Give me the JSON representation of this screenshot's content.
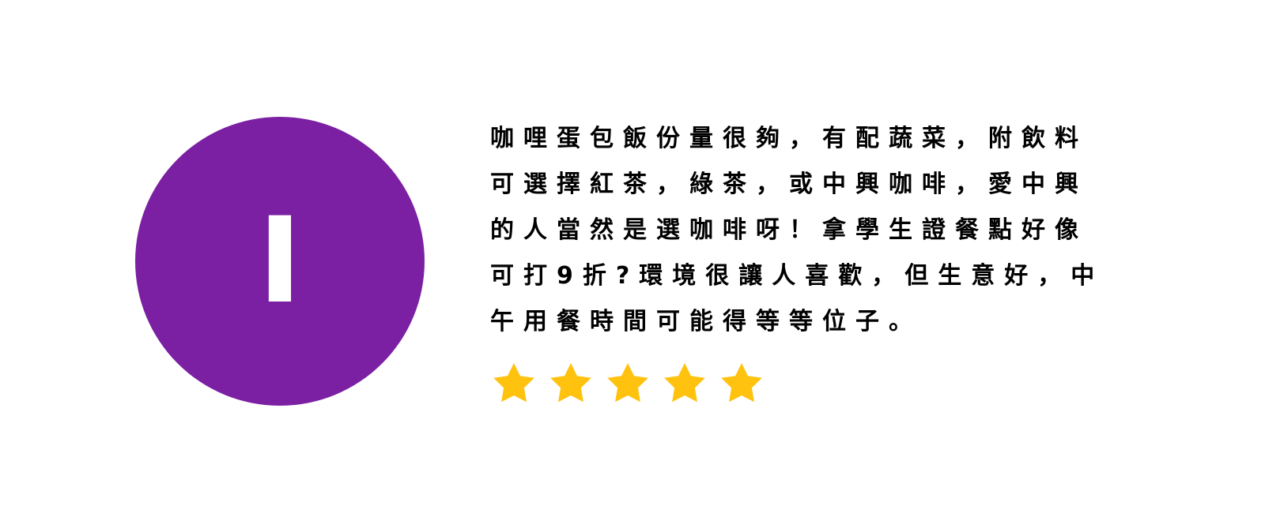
{
  "review": {
    "avatar": {
      "initial": "I",
      "color": "#7b20a2"
    },
    "text": "咖哩蛋包飯份量很夠，有配蔬菜，附飲料\n可選擇紅茶，綠茶，或中興咖啡，愛中興\n的人當然是選咖啡呀！拿學生證餐點好像\n可打9折?環境很讓人喜歡，但生意好，中\n午用餐時間可能得等等位子。",
    "rating": {
      "value": 5,
      "max": 5,
      "icon": "star-icon",
      "color": "#ffc20e"
    }
  }
}
